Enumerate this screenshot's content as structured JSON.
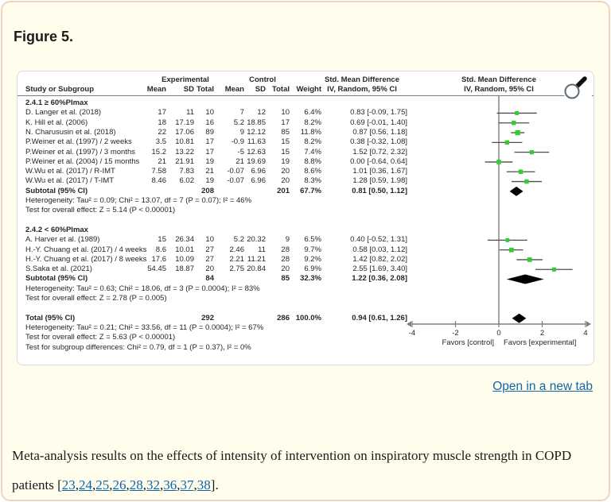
{
  "page": {
    "title": "Figure 5.",
    "open_link": "Open in a new tab"
  },
  "caption": {
    "before": "Meta-analysis results on the effects of intensity of intervention on inspiratory muscle strength in COPD patients [",
    "refs": [
      "23",
      "24",
      "25",
      "26",
      "28",
      "32",
      "36",
      "37",
      "38"
    ],
    "after": "]."
  },
  "chart_data": {
    "type": "forest",
    "headers": {
      "experimental": "Experimental",
      "control": "Control",
      "smd": "Std. Mean Difference",
      "plot_title": "Std. Mean Difference",
      "study": "Study or Subgroup",
      "mean": "Mean",
      "sd": "SD",
      "total": "Total",
      "weight": "Weight",
      "method": "IV, Random, 95% CI",
      "method_plot": "IV, Random, 95% CI"
    },
    "groups": [
      {
        "label": "2.4.1 ≥ 60%PImax",
        "studies": [
          {
            "study": "D. Langer et al. (2018)",
            "mean_e": "17",
            "sd_e": "11",
            "n_e": "10",
            "mean_c": "7",
            "sd_c": "12",
            "n_c": "10",
            "weight": "6.4%",
            "ci_text": "0.83 [-0.09, 1.75]",
            "est": 0.83,
            "lo": -0.09,
            "hi": 1.75,
            "w": 6.4
          },
          {
            "study": "K. Hill et al. (2006)",
            "mean_e": "18",
            "sd_e": "17.19",
            "n_e": "16",
            "mean_c": "5.2",
            "sd_c": "18.85",
            "n_c": "17",
            "weight": "8.2%",
            "ci_text": "0.69 [-0.01, 1.40]",
            "est": 0.69,
            "lo": -0.01,
            "hi": 1.4,
            "w": 8.2
          },
          {
            "study": "N. Charususin et al. (2018)",
            "mean_e": "22",
            "sd_e": "17.06",
            "n_e": "89",
            "mean_c": "9",
            "sd_c": "12.12",
            "n_c": "85",
            "weight": "11.8%",
            "ci_text": "0.87 [0.56, 1.18]",
            "est": 0.87,
            "lo": 0.56,
            "hi": 1.18,
            "w": 11.8
          },
          {
            "study": "P.Weiner et al. (1997) / 2 weeks",
            "mean_e": "3.5",
            "sd_e": "10.81",
            "n_e": "17",
            "mean_c": "-0.9",
            "sd_c": "11.63",
            "n_c": "15",
            "weight": "8.2%",
            "ci_text": "0.38 [-0.32, 1.08]",
            "est": 0.38,
            "lo": -0.32,
            "hi": 1.08,
            "w": 8.2
          },
          {
            "study": "P.Weiner et al. (1997) / 3 months",
            "mean_e": "15.2",
            "sd_e": "13.22",
            "n_e": "17",
            "mean_c": "-5",
            "sd_c": "12.63",
            "n_c": "15",
            "weight": "7.4%",
            "ci_text": "1.52 [0.72, 2.32]",
            "est": 1.52,
            "lo": 0.72,
            "hi": 2.32,
            "w": 7.4
          },
          {
            "study": "P.Weiner et al. (2004) / 15 months",
            "mean_e": "21",
            "sd_e": "21.91",
            "n_e": "19",
            "mean_c": "21",
            "sd_c": "19.69",
            "n_c": "19",
            "weight": "8.8%",
            "ci_text": "0.00 [-0.64, 0.64]",
            "est": 0.0,
            "lo": -0.64,
            "hi": 0.64,
            "w": 8.8
          },
          {
            "study": "W.Wu et al. (2017) / R-IMT",
            "mean_e": "7.58",
            "sd_e": "7.83",
            "n_e": "21",
            "mean_c": "-0.07",
            "sd_c": "6.96",
            "n_c": "20",
            "weight": "8.6%",
            "ci_text": "1.01 [0.36, 1.67]",
            "est": 1.01,
            "lo": 0.36,
            "hi": 1.67,
            "w": 8.6
          },
          {
            "study": "W.Wu et al. (2017) / T-IMT",
            "mean_e": "8.46",
            "sd_e": "6.02",
            "n_e": "19",
            "mean_c": "-0.07",
            "sd_c": "6.96",
            "n_c": "20",
            "weight": "8.3%",
            "ci_text": "1.28 [0.59, 1.98]",
            "est": 1.28,
            "lo": 0.59,
            "hi": 1.98,
            "w": 8.3
          }
        ],
        "subtotal": {
          "label": "Subtotal (95% CI)",
          "n_e": "208",
          "n_c": "201",
          "weight": "67.7%",
          "ci_text": "0.81 [0.50, 1.12]",
          "est": 0.81,
          "lo": 0.5,
          "hi": 1.12
        },
        "heterogeneity": "Heterogeneity: Tau² = 0.09; Chi² = 13.07, df = 7 (P = 0.07); I² = 46%",
        "overall": "Test for overall effect: Z = 5.14 (P < 0.00001)"
      },
      {
        "label": "2.4.2 < 60%PImax",
        "studies": [
          {
            "study": "A. Harver et al. (1989)",
            "mean_e": "15",
            "sd_e": "26.34",
            "n_e": "10",
            "mean_c": "5.2",
            "sd_c": "20.32",
            "n_c": "9",
            "weight": "6.5%",
            "ci_text": "0.40 [-0.52, 1.31]",
            "est": 0.4,
            "lo": -0.52,
            "hi": 1.31,
            "w": 6.5
          },
          {
            "study": "H.-Y. Chuang et al. (2017) / 4 weeks",
            "mean_e": "8.6",
            "sd_e": "10.01",
            "n_e": "27",
            "mean_c": "2.46",
            "sd_c": "11",
            "n_c": "28",
            "weight": "9.7%",
            "ci_text": "0.58 [0.03, 1.12]",
            "est": 0.58,
            "lo": 0.03,
            "hi": 1.12,
            "w": 9.7
          },
          {
            "study": "H.-Y. Chuang et al. (2017) / 8 weeks",
            "mean_e": "17.6",
            "sd_e": "10.09",
            "n_e": "27",
            "mean_c": "2.21",
            "sd_c": "11.21",
            "n_c": "28",
            "weight": "9.2%",
            "ci_text": "1.42 [0.82, 2.02]",
            "est": 1.42,
            "lo": 0.82,
            "hi": 2.02,
            "w": 9.2
          },
          {
            "study": "S.Saka et al. (2021)",
            "mean_e": "54.45",
            "sd_e": "18.87",
            "n_e": "20",
            "mean_c": "2.75",
            "sd_c": "20.84",
            "n_c": "20",
            "weight": "6.9%",
            "ci_text": "2.55 [1.69, 3.40]",
            "est": 2.55,
            "lo": 1.69,
            "hi": 3.4,
            "w": 6.9
          }
        ],
        "subtotal": {
          "label": "Subtotal (95% CI)",
          "n_e": "84",
          "n_c": "85",
          "weight": "32.3%",
          "ci_text": "1.22 [0.36, 2.08]",
          "est": 1.22,
          "lo": 0.36,
          "hi": 2.08
        },
        "heterogeneity": "Heterogeneity: Tau² = 0.63; Chi² = 18.06, df = 3 (P = 0.0004); I² = 83%",
        "overall": "Test for overall effect: Z = 2.78 (P = 0.005)"
      }
    ],
    "total": {
      "label": "Total (95% CI)",
      "n_e": "292",
      "n_c": "286",
      "weight": "100.0%",
      "ci_text": "0.94 [0.61, 1.26]",
      "est": 0.94,
      "lo": 0.61,
      "hi": 1.26
    },
    "total_heterogeneity": "Heterogeneity: Tau² = 0.21; Chi² = 33.56, df = 11 (P = 0.0004); I² = 67%",
    "total_overall": "Test for overall effect: Z = 5.63 (P < 0.00001)",
    "subgroup_diff": "Test for subgroup differences: Chi² = 0.79, df = 1 (P = 0.37), I² = 0%",
    "axis": {
      "ticks": [
        -4,
        -2,
        0,
        2,
        4
      ],
      "min": -4,
      "max": 4,
      "left_label": "Favors [control]",
      "right_label": "Favors [experimental]"
    },
    "colors": {
      "marker": "#33CC33",
      "ci_line": "#4e4e4e",
      "axis": "#7d7d7d",
      "diamond": "#000000"
    }
  }
}
